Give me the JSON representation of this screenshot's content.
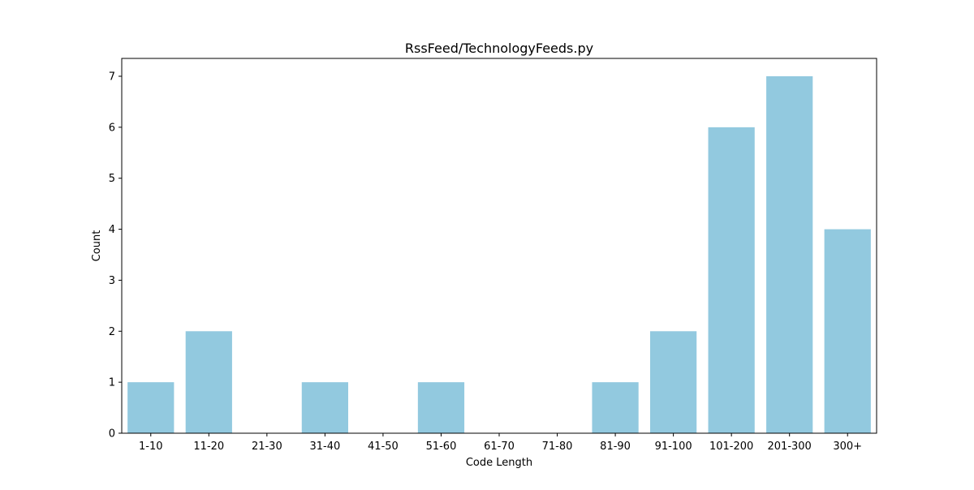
{
  "chart_data": {
    "type": "bar",
    "title": "RssFeed/TechnologyFeeds.py",
    "xlabel": "Code Length",
    "ylabel": "Count",
    "categories": [
      "1-10",
      "11-20",
      "21-30",
      "31-40",
      "41-50",
      "51-60",
      "61-70",
      "71-80",
      "81-90",
      "91-100",
      "101-200",
      "201-300",
      "300+"
    ],
    "values": [
      1,
      2,
      0,
      1,
      0,
      1,
      0,
      0,
      1,
      2,
      6,
      7,
      4
    ],
    "ylim": [
      0,
      7.35
    ],
    "yticks": [
      0,
      1,
      2,
      3,
      4,
      5,
      6,
      7
    ],
    "bar_color": "#92c9df",
    "grid": false,
    "legend": "none"
  }
}
